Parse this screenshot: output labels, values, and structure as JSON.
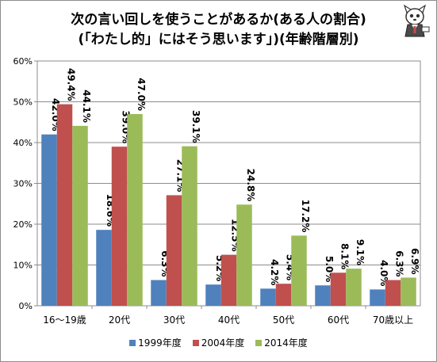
{
  "chart_data": {
    "type": "bar",
    "title": "次の言い回しを使うことがあるか(ある人の割合)",
    "subtitle": "(「わたし的」にはそう思います」)(年齢階層別)",
    "categories": [
      "16〜19歳",
      "20代",
      "30代",
      "40代",
      "50代",
      "60代",
      "70歳以上"
    ],
    "series": [
      {
        "name": "1999年度",
        "color": "#4f81bd",
        "values": [
          42.0,
          18.6,
          6.3,
          5.2,
          4.2,
          5.0,
          4.0
        ],
        "labels": [
          "42.0%",
          "18.6%",
          "6.3%",
          "5.2%",
          "4.2%",
          "5.0%",
          "4.0%"
        ]
      },
      {
        "name": "2004年度",
        "color": "#c0504d",
        "values": [
          49.4,
          39.0,
          27.1,
          12.5,
          5.4,
          8.1,
          6.3
        ],
        "labels": [
          "49.4%",
          "39.0%",
          "27.1%",
          "12.5%",
          "5.4%",
          "8.1%",
          "6.3%"
        ]
      },
      {
        "name": "2014年度",
        "color": "#9bbb59",
        "values": [
          44.1,
          47.0,
          39.1,
          24.8,
          17.2,
          9.1,
          6.9
        ],
        "labels": [
          "44.1%",
          "47.0%",
          "39.1%",
          "24.8%",
          "17.2%",
          "9.1%",
          "6.9%"
        ]
      }
    ],
    "yticks": [
      "0%",
      "10%",
      "20%",
      "30%",
      "40%",
      "50%",
      "60%"
    ],
    "ylim": [
      0,
      60
    ],
    "grid": true,
    "legend_position": "bottom"
  }
}
